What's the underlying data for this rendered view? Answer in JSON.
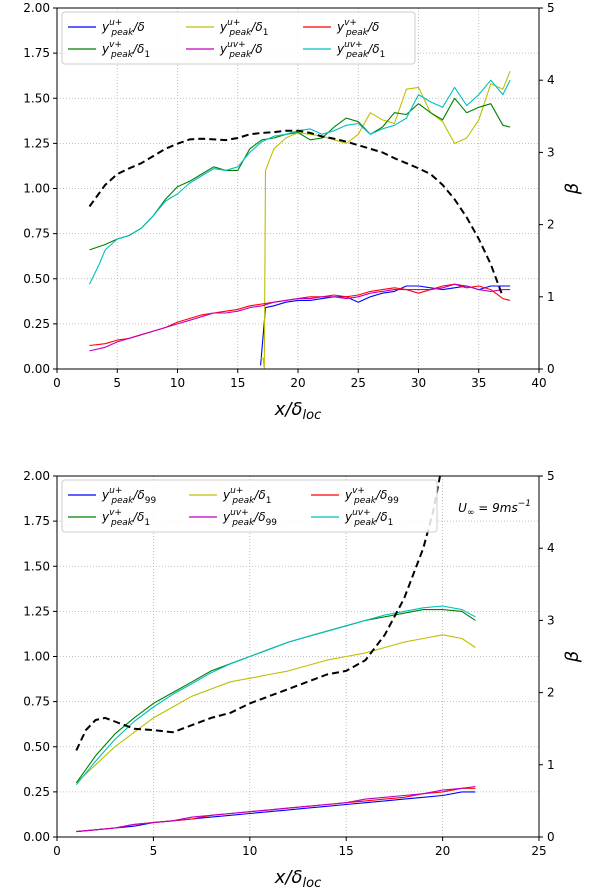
{
  "chart_data": [
    {
      "type": "line",
      "xlabel": "x/δ_loc",
      "xlabel_main": "x/δ",
      "xlabel_sub": "loc",
      "ylabel": "",
      "y2label": "β",
      "xlim": [
        0,
        40
      ],
      "ylim": [
        0,
        2
      ],
      "y2lim": [
        0,
        5
      ],
      "xticks": [
        0,
        5,
        10,
        15,
        20,
        25,
        30,
        35,
        40
      ],
      "yticks": [
        0.0,
        0.25,
        0.5,
        0.75,
        1.0,
        1.25,
        1.5,
        1.75,
        2.0
      ],
      "y2ticks": [
        0,
        1,
        2,
        3,
        4,
        5
      ],
      "grid": true,
      "legend_placement": "upper-left",
      "legend_columns": 3,
      "series": [
        {
          "name": "y_peak^{u+}/δ",
          "sup": "u+",
          "denom": "δ",
          "denom_sub": "",
          "color": "#0000ff",
          "axis": "left",
          "x": [
            16.9,
            17.3,
            18,
            19,
            20,
            21,
            22,
            23,
            24,
            25,
            26,
            27,
            28,
            29,
            30,
            31,
            32,
            33,
            34,
            35,
            36,
            37,
            37.6
          ],
          "y": [
            0.02,
            0.34,
            0.35,
            0.37,
            0.38,
            0.38,
            0.39,
            0.4,
            0.4,
            0.37,
            0.4,
            0.42,
            0.43,
            0.46,
            0.46,
            0.45,
            0.44,
            0.45,
            0.46,
            0.44,
            0.46,
            0.46,
            0.46
          ]
        },
        {
          "name": "y_peak^{u+}/δ_1",
          "sup": "u+",
          "denom": "δ",
          "denom_sub": "1",
          "color": "#bfbf00",
          "axis": "left",
          "x": [
            16.9,
            17.1,
            17.2,
            17.3,
            18,
            19,
            20,
            21,
            22,
            23,
            24,
            25,
            26,
            27,
            28,
            29,
            30,
            31,
            32,
            33,
            34,
            35,
            36,
            37,
            37.6
          ],
          "y": [
            0.06,
            0.06,
            0.0,
            1.1,
            1.22,
            1.28,
            1.31,
            1.3,
            1.29,
            1.27,
            1.25,
            1.3,
            1.42,
            1.38,
            1.36,
            1.55,
            1.56,
            1.42,
            1.37,
            1.25,
            1.28,
            1.38,
            1.58,
            1.55,
            1.65
          ]
        },
        {
          "name": "y_peak^{v+}/δ",
          "sup": "v+",
          "denom": "δ",
          "denom_sub": "",
          "color": "#ff0000",
          "axis": "left",
          "x": [
            2.7,
            4,
            5,
            6,
            7,
            8,
            9,
            10,
            11,
            12,
            13,
            14,
            15,
            16,
            17,
            18,
            19,
            20,
            21,
            22,
            23,
            24,
            25,
            26,
            27,
            28,
            29,
            30,
            31,
            32,
            33,
            34,
            35,
            36,
            37,
            37.6
          ],
          "y": [
            0.13,
            0.14,
            0.16,
            0.17,
            0.19,
            0.21,
            0.23,
            0.26,
            0.28,
            0.3,
            0.31,
            0.32,
            0.33,
            0.35,
            0.36,
            0.37,
            0.38,
            0.39,
            0.4,
            0.4,
            0.41,
            0.4,
            0.41,
            0.43,
            0.44,
            0.45,
            0.44,
            0.42,
            0.44,
            0.46,
            0.47,
            0.45,
            0.46,
            0.44,
            0.39,
            0.38
          ]
        },
        {
          "name": "y_peak^{v+}/δ_1",
          "sup": "v+",
          "denom": "δ",
          "denom_sub": "1",
          "color": "#008000",
          "axis": "left",
          "x": [
            2.7,
            4,
            5,
            6,
            7,
            8,
            9,
            10,
            11,
            12,
            13,
            14,
            15,
            16,
            17,
            18,
            19,
            20,
            21,
            22,
            23,
            24,
            25,
            26,
            27,
            28,
            29,
            30,
            31,
            32,
            33,
            34,
            35,
            36,
            37,
            37.6
          ],
          "y": [
            0.66,
            0.69,
            0.72,
            0.74,
            0.78,
            0.85,
            0.94,
            1.01,
            1.04,
            1.08,
            1.12,
            1.1,
            1.1,
            1.22,
            1.27,
            1.28,
            1.3,
            1.31,
            1.27,
            1.28,
            1.34,
            1.39,
            1.37,
            1.3,
            1.34,
            1.42,
            1.41,
            1.47,
            1.42,
            1.38,
            1.5,
            1.42,
            1.45,
            1.47,
            1.35,
            1.34
          ]
        },
        {
          "name": "y_peak^{uv+}/δ",
          "sup": "uv+",
          "denom": "δ",
          "denom_sub": "",
          "color": "#bf00bf",
          "axis": "left",
          "x": [
            2.7,
            4,
            5,
            6,
            7,
            8,
            9,
            10,
            11,
            12,
            13,
            14,
            15,
            16,
            17,
            18,
            19,
            20,
            21,
            22,
            23,
            24,
            25,
            26,
            27,
            28,
            29,
            30,
            31,
            32,
            33,
            34,
            35,
            36,
            37,
            37.6
          ],
          "y": [
            0.1,
            0.12,
            0.15,
            0.17,
            0.19,
            0.21,
            0.23,
            0.25,
            0.27,
            0.29,
            0.31,
            0.31,
            0.32,
            0.34,
            0.35,
            0.37,
            0.38,
            0.39,
            0.39,
            0.4,
            0.4,
            0.39,
            0.4,
            0.42,
            0.43,
            0.44,
            0.44,
            0.44,
            0.44,
            0.45,
            0.47,
            0.46,
            0.44,
            0.43,
            0.44,
            0.44
          ]
        },
        {
          "name": "y_peak^{uv+}/δ_1",
          "sup": "uv+",
          "denom": "δ",
          "denom_sub": "1",
          "color": "#00bfbf",
          "axis": "left",
          "x": [
            2.7,
            3.5,
            4,
            5,
            6,
            7,
            8,
            9,
            10,
            11,
            12,
            13,
            14,
            15,
            16,
            17,
            18,
            19,
            20,
            21,
            22,
            23,
            24,
            25,
            26,
            27,
            28,
            29,
            30,
            31,
            32,
            33,
            34,
            35,
            36,
            37,
            37.6
          ],
          "y": [
            0.47,
            0.58,
            0.66,
            0.72,
            0.74,
            0.78,
            0.85,
            0.93,
            0.97,
            1.03,
            1.07,
            1.11,
            1.1,
            1.12,
            1.2,
            1.26,
            1.29,
            1.3,
            1.32,
            1.33,
            1.3,
            1.32,
            1.35,
            1.36,
            1.3,
            1.33,
            1.35,
            1.39,
            1.52,
            1.48,
            1.45,
            1.56,
            1.46,
            1.52,
            1.6,
            1.52,
            1.6
          ]
        },
        {
          "name": "β",
          "color": "#000000",
          "axis": "right",
          "dashed": true,
          "x": [
            2.7,
            4,
            5,
            6,
            7,
            8,
            9,
            10,
            11,
            12,
            13,
            14,
            15,
            16,
            17,
            18,
            19,
            20,
            21,
            22,
            23,
            24,
            25,
            26,
            27,
            28,
            29,
            30,
            31,
            32,
            33,
            34,
            35,
            36,
            37
          ],
          "y": [
            2.25,
            2.55,
            2.7,
            2.78,
            2.85,
            2.95,
            3.05,
            3.12,
            3.18,
            3.19,
            3.18,
            3.17,
            3.2,
            3.25,
            3.27,
            3.28,
            3.3,
            3.3,
            3.27,
            3.22,
            3.19,
            3.15,
            3.1,
            3.05,
            3.0,
            2.92,
            2.85,
            2.78,
            2.7,
            2.55,
            2.35,
            2.1,
            1.8,
            1.45,
            1.0
          ]
        }
      ]
    },
    {
      "type": "line",
      "xlabel": "x/δ_loc",
      "xlabel_main": "x/δ",
      "xlabel_sub": "loc",
      "ylabel": "",
      "y2label": "β",
      "xlim": [
        0,
        25
      ],
      "ylim": [
        0,
        2
      ],
      "y2lim": [
        0,
        5
      ],
      "xticks": [
        0,
        5,
        10,
        15,
        20,
        25
      ],
      "yticks": [
        0.0,
        0.25,
        0.5,
        0.75,
        1.0,
        1.25,
        1.5,
        1.75,
        2.0
      ],
      "y2ticks": [
        0,
        1,
        2,
        3,
        4,
        5
      ],
      "grid": true,
      "legend_placement": "upper-left",
      "legend_columns": 3,
      "annotation": "U∞ = 9ms⁻¹",
      "annotation_main": "U",
      "annotation_sub": "∞",
      "annotation_rest": " = 9ms",
      "annotation_sup": "−1",
      "series": [
        {
          "name": "y_peak^{u+}/δ_99",
          "sup": "u+",
          "denom": "δ",
          "denom_sub": "99",
          "color": "#0000ff",
          "axis": "left",
          "x": [
            1.0,
            2,
            3,
            4,
            5,
            6,
            7,
            8,
            9,
            10,
            11,
            12,
            13,
            14,
            15,
            16,
            17,
            18,
            19,
            20,
            21,
            21.7
          ],
          "y": [
            0.03,
            0.04,
            0.05,
            0.06,
            0.08,
            0.09,
            0.1,
            0.11,
            0.12,
            0.13,
            0.14,
            0.15,
            0.16,
            0.17,
            0.18,
            0.19,
            0.2,
            0.21,
            0.22,
            0.23,
            0.25,
            0.25
          ]
        },
        {
          "name": "y_peak^{u+}/δ_1",
          "sup": "u+",
          "denom": "δ",
          "denom_sub": "1",
          "color": "#bfbf00",
          "axis": "left",
          "x": [
            1.0,
            2,
            3,
            4,
            5,
            6,
            7,
            8,
            9,
            10,
            11,
            12,
            13,
            14,
            15,
            16,
            17,
            18,
            19,
            20,
            21,
            21.7
          ],
          "y": [
            0.3,
            0.4,
            0.5,
            0.58,
            0.66,
            0.72,
            0.78,
            0.82,
            0.86,
            0.88,
            0.9,
            0.92,
            0.95,
            0.98,
            1.0,
            1.02,
            1.05,
            1.08,
            1.1,
            1.12,
            1.1,
            1.05
          ]
        },
        {
          "name": "y_peak^{v+}/δ_99",
          "sup": "v+",
          "denom": "δ",
          "denom_sub": "99",
          "color": "#ff0000",
          "axis": "left",
          "x": [
            1.0,
            2,
            3,
            4,
            5,
            6,
            7,
            8,
            9,
            10,
            11,
            12,
            13,
            14,
            15,
            16,
            17,
            18,
            19,
            20,
            21,
            21.7
          ],
          "y": [
            0.03,
            0.04,
            0.05,
            0.07,
            0.08,
            0.09,
            0.1,
            0.12,
            0.13,
            0.14,
            0.15,
            0.16,
            0.17,
            0.18,
            0.19,
            0.2,
            0.21,
            0.22,
            0.24,
            0.25,
            0.27,
            0.27
          ]
        },
        {
          "name": "y_peak^{v+}/δ_1",
          "sup": "v+",
          "denom": "δ",
          "denom_sub": "1",
          "color": "#008000",
          "axis": "left",
          "x": [
            1.0,
            2,
            3,
            4,
            5,
            6,
            7,
            8,
            9,
            10,
            11,
            12,
            13,
            14,
            15,
            16,
            17,
            18,
            19,
            20,
            21,
            21.7
          ],
          "y": [
            0.3,
            0.45,
            0.57,
            0.66,
            0.74,
            0.8,
            0.86,
            0.92,
            0.96,
            1.0,
            1.04,
            1.08,
            1.11,
            1.14,
            1.17,
            1.2,
            1.22,
            1.24,
            1.26,
            1.26,
            1.25,
            1.2
          ]
        },
        {
          "name": "y_peak^{uv+}/δ_99",
          "sup": "uv+",
          "denom": "δ",
          "denom_sub": "99",
          "color": "#bf00bf",
          "axis": "left",
          "x": [
            1.0,
            2,
            3,
            4,
            5,
            6,
            7,
            8,
            9,
            10,
            11,
            12,
            13,
            14,
            15,
            16,
            17,
            18,
            19,
            20,
            21,
            21.7
          ],
          "y": [
            0.03,
            0.04,
            0.05,
            0.07,
            0.08,
            0.09,
            0.11,
            0.12,
            0.13,
            0.14,
            0.15,
            0.16,
            0.17,
            0.18,
            0.19,
            0.21,
            0.22,
            0.23,
            0.24,
            0.26,
            0.27,
            0.28
          ]
        },
        {
          "name": "y_peak^{uv+}/δ_1",
          "sup": "uv+",
          "denom": "δ",
          "denom_sub": "1",
          "color": "#00bfbf",
          "axis": "left",
          "x": [
            1.0,
            2,
            3,
            4,
            5,
            6,
            7,
            8,
            9,
            10,
            11,
            12,
            13,
            14,
            15,
            16,
            17,
            18,
            19,
            20,
            21,
            21.7
          ],
          "y": [
            0.29,
            0.42,
            0.54,
            0.64,
            0.72,
            0.79,
            0.85,
            0.91,
            0.96,
            1.0,
            1.04,
            1.08,
            1.11,
            1.14,
            1.17,
            1.2,
            1.23,
            1.25,
            1.27,
            1.28,
            1.26,
            1.22
          ]
        },
        {
          "name": "β",
          "color": "#000000",
          "axis": "right",
          "dashed": true,
          "x": [
            1.0,
            1.5,
            2,
            2.5,
            3,
            3.5,
            4,
            5,
            6,
            7,
            8,
            9,
            10,
            11,
            12,
            13,
            14,
            15,
            16,
            17,
            18,
            19,
            19.5,
            19.9
          ],
          "y": [
            1.2,
            1.48,
            1.62,
            1.65,
            1.6,
            1.55,
            1.5,
            1.48,
            1.45,
            1.55,
            1.65,
            1.72,
            1.85,
            1.95,
            2.05,
            2.15,
            2.25,
            2.3,
            2.45,
            2.8,
            3.3,
            4.0,
            4.5,
            5.05
          ]
        }
      ]
    }
  ]
}
